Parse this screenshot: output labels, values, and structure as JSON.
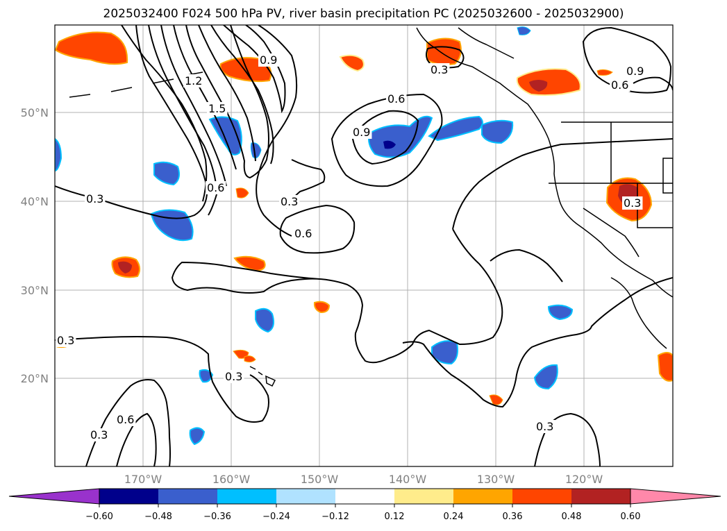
{
  "title": "2025032400 F024 500 hPa PV, river basin precipitation PC (2025032600 - 2025032900)",
  "axes": {
    "lat_labels": [
      "50°N",
      "40°N",
      "30°N",
      "20°N"
    ],
    "lon_labels": [
      "170°W",
      "160°W",
      "150°W",
      "140°W",
      "130°W",
      "120°W"
    ]
  },
  "contour_labels": [
    "0.9",
    "1.2",
    "1.5",
    "0.6",
    "0.3",
    "0.3",
    "0.9",
    "0.6",
    "0.3",
    "0.6",
    "0.3",
    "0.9",
    "0.6",
    "0.3",
    "0.3",
    "0.3",
    "0.6",
    "0.3"
  ],
  "colorbar": {
    "ticks": [
      "−0.60",
      "−0.48",
      "−0.36",
      "−0.24",
      "−0.12",
      "0.12",
      "0.24",
      "0.36",
      "0.48",
      "0.60"
    ],
    "colors": [
      "#9932cc",
      "#00008b",
      "#3a5fcd",
      "#00bfff",
      "#b0e2ff",
      "#ffffff",
      "#ffec8b",
      "#ffa500",
      "#ff4500",
      "#b22222",
      "#ff88aa"
    ]
  }
}
